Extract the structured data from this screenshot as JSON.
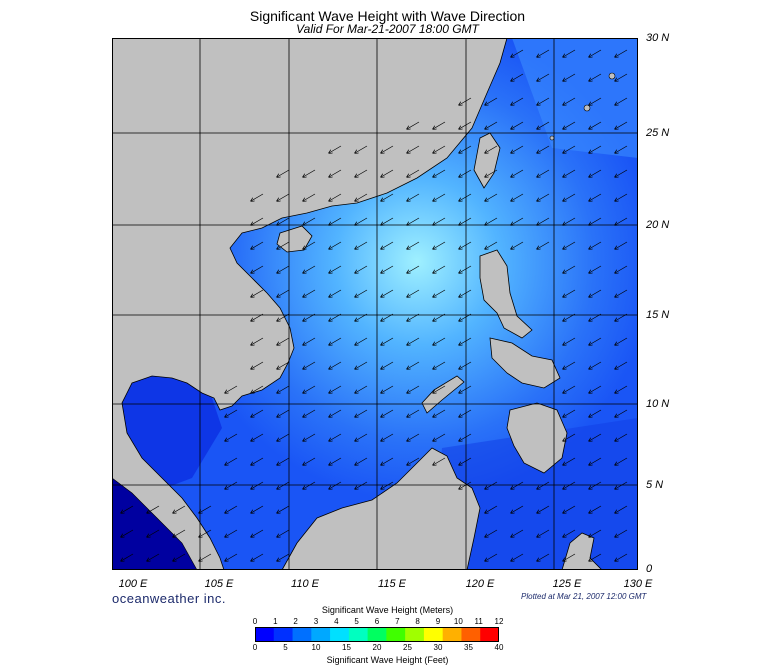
{
  "title": "Significant Wave Height with Wave Direction",
  "subtitle": "Valid For Mar-21-2007 18:00 GMT",
  "brand": "oceanweather inc.",
  "plotted": "Plotted at Mar 21, 2007 12:00 GMT",
  "lat_labels": [
    "30 N",
    "25 N",
    "20 N",
    "15 N",
    "10 N",
    "5 N",
    "0"
  ],
  "lon_labels": [
    "100 E",
    "105 E",
    "110 E",
    "115 E",
    "120 E",
    "125 E",
    "130 E"
  ],
  "colorbar": {
    "meters_title": "Significant Wave Height (Meters)",
    "feet_title": "Significant Wave Height (Feet)",
    "meters_ticks": [
      "0",
      "1",
      "2",
      "3",
      "4",
      "5",
      "6",
      "7",
      "8",
      "9",
      "10",
      "11",
      "12"
    ],
    "feet_ticks": [
      "0",
      "5",
      "10",
      "15",
      "20",
      "25",
      "30",
      "35",
      "40"
    ],
    "colors": [
      "#0000ff",
      "#0030ff",
      "#0070ff",
      "#00a8ff",
      "#00e0ff",
      "#00ffc0",
      "#00ff60",
      "#40ff00",
      "#a0ff00",
      "#ffff00",
      "#ffb000",
      "#ff6000",
      "#ff0000"
    ]
  },
  "colors": {
    "land": "#c0c0c0",
    "sea_dark": "#0010d0",
    "sea_mid": "#1a55f5",
    "sea_light": "#4aa6ff",
    "sea_peak": "#8fe0ff"
  }
}
